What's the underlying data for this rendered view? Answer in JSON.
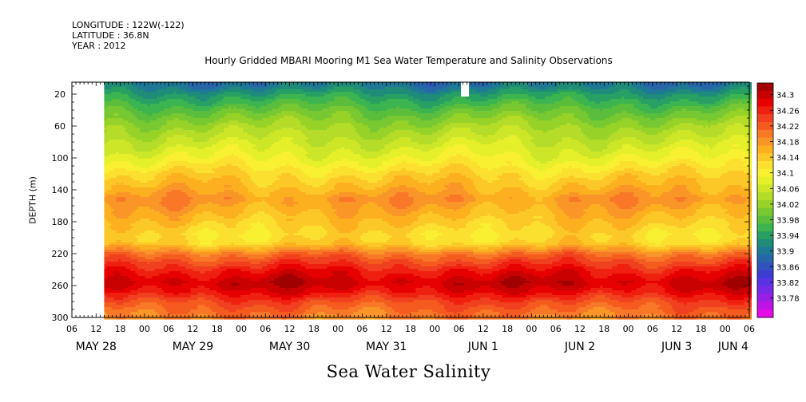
{
  "header": {
    "longitude": "LONGITUDE : 122W(-122)",
    "latitude": "LATITUDE : 36.8N",
    "year": "YEAR : 2012"
  },
  "chart_data": {
    "type": "heatmap",
    "title": "Hourly Gridded MBARI Mooring M1 Sea Water Temperature and Salinity Observations",
    "xlabel": "Sea Water Salinity",
    "ylabel": "DEPTH (m)",
    "x_hour_ticks": [
      "06",
      "12",
      "18",
      "00",
      "06",
      "12",
      "18",
      "00",
      "06",
      "12",
      "18",
      "00",
      "06",
      "12",
      "18",
      "00",
      "06",
      "12",
      "18",
      "00",
      "06",
      "12",
      "18",
      "00",
      "06",
      "12",
      "18",
      "00",
      "06"
    ],
    "x_day_labels": [
      "MAY 28",
      "MAY 29",
      "MAY 30",
      "MAY 31",
      "JUN  1",
      "JUN  2",
      "JUN  3",
      "JUN  4"
    ],
    "x_hours_range": [
      6,
      174
    ],
    "data_start_hour": 14,
    "y_ticks": [
      20,
      60,
      100,
      140,
      180,
      220,
      260,
      300
    ],
    "ylim": [
      300,
      5
    ],
    "y_reversed": true,
    "colorbar_labels": [
      "34.3",
      "34.26",
      "34.22",
      "34.18",
      "34.14",
      "34.1",
      "34.06",
      "34.02",
      "33.98",
      "33.94",
      "33.9",
      "33.86",
      "33.82",
      "33.78"
    ],
    "colorbar_levels": [
      34.34,
      34.32,
      34.3,
      34.28,
      34.26,
      34.24,
      34.22,
      34.2,
      34.18,
      34.16,
      34.14,
      34.12,
      34.1,
      34.08,
      34.06,
      34.04,
      34.02,
      34.0,
      33.98,
      33.96,
      33.94,
      33.92,
      33.9,
      33.88,
      33.86,
      33.84,
      33.82,
      33.8,
      33.78,
      33.76
    ],
    "colorbar_colors": [
      "#a00000",
      "#c80000",
      "#e60000",
      "#f02010",
      "#f04020",
      "#f55a1e",
      "#f87828",
      "#fa9628",
      "#fcb020",
      "#fcc828",
      "#fce030",
      "#f8f030",
      "#e6f02a",
      "#cde628",
      "#b4dc28",
      "#96d228",
      "#78c832",
      "#5abe3c",
      "#3cb450",
      "#28a064",
      "#1e8c78",
      "#1e7896",
      "#2864aa",
      "#3250be",
      "#3c3cd2",
      "#5a32e6",
      "#7828e6",
      "#9a1ee6",
      "#be14e6",
      "#e60ae6"
    ],
    "profile_depths": [
      8,
      20,
      40,
      60,
      80,
      100,
      120,
      140,
      150,
      165,
      180,
      195,
      205,
      220,
      240,
      255,
      265,
      280,
      300
    ],
    "profile_salinity": [
      33.91,
      33.95,
      34.0,
      34.04,
      34.07,
      34.1,
      34.14,
      34.17,
      34.19,
      34.17,
      34.15,
      34.13,
      34.14,
      34.22,
      34.28,
      34.31,
      34.29,
      34.24,
      34.2
    ],
    "colorbar": true
  }
}
